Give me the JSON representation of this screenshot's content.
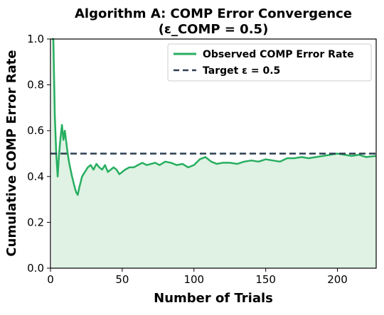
{
  "chart_data": {
    "type": "line",
    "title_line1": "Algorithm A: COMP Error Convergence",
    "title_line2": "(ε_COMP = 0.5)",
    "xlabel": "Number of Trials",
    "ylabel": "Cumulative COMP Error Rate",
    "xlim": [
      0,
      227
    ],
    "ylim": [
      0,
      1.0
    ],
    "xticks": [
      0,
      50,
      100,
      150,
      200
    ],
    "yticks": [
      0.0,
      0.2,
      0.4,
      0.6,
      0.8,
      1.0
    ],
    "xtick_labels": [
      "0",
      "50",
      "100",
      "150",
      "200"
    ],
    "ytick_labels": [
      "0.0",
      "0.2",
      "0.4",
      "0.6",
      "0.8",
      "1.0"
    ],
    "legend_position": "top-right",
    "grid": false,
    "series": [
      {
        "name": "Observed COMP Error Rate",
        "color": "#27ae60",
        "fill_color": "#dff2e3",
        "style": "solid",
        "x": [
          1,
          2,
          3,
          4,
          5,
          6,
          7,
          8,
          9,
          10,
          11,
          12,
          13,
          14,
          15,
          16,
          17,
          18,
          19,
          20,
          22,
          24,
          26,
          28,
          30,
          32,
          34,
          36,
          38,
          40,
          42,
          44,
          46,
          48,
          50,
          52,
          55,
          58,
          61,
          64,
          67,
          70,
          73,
          76,
          80,
          84,
          88,
          92,
          96,
          100,
          104,
          108,
          112,
          116,
          120,
          125,
          130,
          135,
          140,
          145,
          150,
          155,
          160,
          165,
          170,
          175,
          180,
          185,
          190,
          195,
          200,
          205,
          210,
          215,
          220,
          227
        ],
        "y": [
          1.0,
          1.0,
          0.67,
          0.5,
          0.4,
          0.5,
          0.57,
          0.625,
          0.56,
          0.6,
          0.55,
          0.5,
          0.46,
          0.43,
          0.4,
          0.375,
          0.35,
          0.33,
          0.32,
          0.35,
          0.4,
          0.42,
          0.44,
          0.45,
          0.43,
          0.455,
          0.44,
          0.43,
          0.45,
          0.42,
          0.43,
          0.44,
          0.43,
          0.41,
          0.42,
          0.43,
          0.44,
          0.44,
          0.45,
          0.46,
          0.45,
          0.455,
          0.46,
          0.45,
          0.465,
          0.46,
          0.45,
          0.455,
          0.44,
          0.45,
          0.475,
          0.485,
          0.465,
          0.455,
          0.46,
          0.46,
          0.455,
          0.465,
          0.47,
          0.465,
          0.475,
          0.47,
          0.465,
          0.48,
          0.48,
          0.485,
          0.48,
          0.485,
          0.49,
          0.495,
          0.5,
          0.495,
          0.49,
          0.495,
          0.485,
          0.49
        ]
      },
      {
        "name": "Target ε = 0.5",
        "color": "#2c3e50",
        "style": "dashed",
        "x": [
          0,
          227
        ],
        "y": [
          0.5,
          0.5
        ]
      }
    ]
  }
}
